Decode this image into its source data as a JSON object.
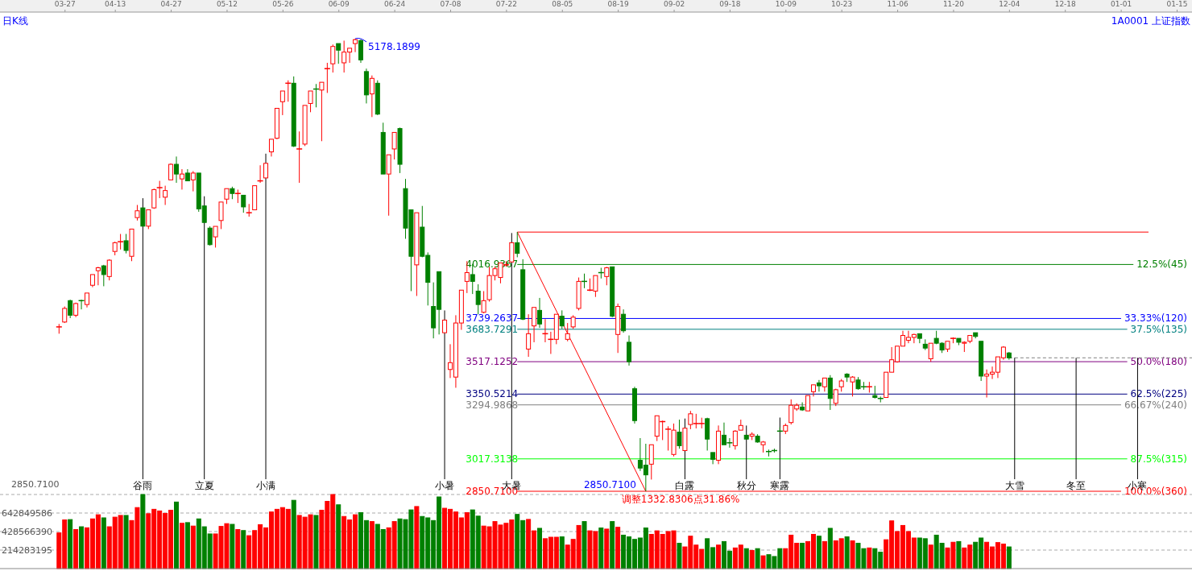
{
  "chart_data": [
    {
      "type": "candlestick",
      "title": "日K线",
      "subtitle": "1A0001 上证指数",
      "categories": [
        null,
        "03-27",
        null,
        null,
        null,
        null,
        null,
        null,
        null,
        null,
        "04-13",
        null,
        null,
        null,
        null,
        null,
        null,
        null,
        null,
        null,
        "04-27",
        null,
        null,
        null,
        null,
        null,
        null,
        null,
        null,
        null,
        "05-12",
        null,
        null,
        null,
        null,
        null,
        null,
        null,
        null,
        null,
        "05-26",
        null,
        null,
        null,
        null,
        null,
        null,
        null,
        null,
        null,
        "06-09",
        null,
        null,
        null,
        null,
        null,
        null,
        null,
        null,
        null,
        "06-24",
        null,
        null,
        null,
        null,
        null,
        null,
        null,
        null,
        null,
        "07-08",
        null,
        null,
        null,
        null,
        null,
        null,
        null,
        null,
        null,
        "07-22",
        null,
        null,
        null,
        null,
        null,
        null,
        null,
        null,
        null,
        "08-05",
        null,
        null,
        null,
        null,
        null,
        null,
        null,
        null,
        null,
        "08-19",
        null,
        null,
        null,
        null,
        null,
        null,
        null,
        null,
        null,
        "09-02",
        null,
        null,
        null,
        null,
        null,
        null,
        null,
        null,
        null,
        "09-18",
        null,
        null,
        null,
        null,
        null,
        null,
        null,
        null,
        null,
        "10-09",
        null,
        null,
        null,
        null,
        null,
        null,
        null,
        null,
        null,
        "10-23",
        null,
        null,
        null,
        null,
        null,
        null,
        null,
        null,
        null,
        "11-06",
        null,
        null,
        null,
        null,
        null,
        null,
        null,
        null,
        null,
        "11-20",
        null,
        null,
        null,
        null,
        null,
        null,
        null,
        null,
        null,
        "12-04",
        null,
        null,
        null,
        null,
        null,
        null,
        null,
        null,
        null,
        "12-18",
        null,
        null,
        null,
        null,
        null,
        null,
        null,
        null,
        null,
        "01-01",
        null,
        null,
        null,
        null,
        null,
        null,
        null,
        null,
        null,
        "01-15"
      ],
      "ohlc": [
        [
          3696,
          3711,
          3661,
          3696
        ],
        [
          3721,
          3801,
          3716,
          3791
        ],
        [
          3831,
          3836,
          3741,
          3756
        ],
        [
          3756,
          3821,
          3746,
          3816
        ],
        [
          3831,
          3836,
          3786,
          3831
        ],
        [
          3811,
          3870,
          3796,
          3870
        ],
        [
          3910,
          3965,
          3900,
          3965
        ],
        [
          3985,
          4005,
          3910,
          4000
        ],
        [
          4010,
          4015,
          3905,
          3965
        ],
        [
          3955,
          4044,
          3935,
          4039
        ],
        [
          4084,
          4134,
          4064,
          4129
        ],
        [
          4134,
          4174,
          4094,
          4134
        ],
        [
          4139,
          4174,
          4074,
          4089
        ],
        [
          4059,
          4199,
          4034,
          4199
        ],
        [
          4258,
          4323,
          4243,
          4293
        ],
        [
          4308,
          4308,
          4214,
          4214
        ],
        [
          4214,
          4298,
          4199,
          4298
        ],
        [
          4308,
          4407,
          4303,
          4402
        ],
        [
          4412,
          4447,
          4358,
          4412
        ],
        [
          4363,
          4422,
          4323,
          4397
        ],
        [
          4452,
          4537,
          4452,
          4532
        ],
        [
          4532,
          4572,
          4437,
          4482
        ],
        [
          4457,
          4507,
          4402,
          4482
        ],
        [
          4487,
          4507,
          4447,
          4447
        ],
        [
          4452,
          4497,
          4393,
          4487
        ],
        [
          4487,
          4487,
          4288,
          4303
        ],
        [
          4318,
          4318,
          4233,
          4233
        ],
        [
          4204,
          4213,
          4114,
          4119
        ],
        [
          4159,
          4213,
          4104,
          4213
        ],
        [
          4243,
          4338,
          4199,
          4338
        ],
        [
          4353,
          4407,
          4328,
          4407
        ],
        [
          4407,
          4417,
          4353,
          4382
        ],
        [
          4382,
          4402,
          4333,
          4382
        ],
        [
          4373,
          4373,
          4283,
          4313
        ],
        [
          4283,
          4328,
          4263,
          4283
        ],
        [
          4298,
          4422,
          4298,
          4422
        ],
        [
          4447,
          4527,
          4437,
          4447
        ],
        [
          4462,
          4537,
          4462,
          4537
        ],
        [
          4596,
          4661,
          4572,
          4661
        ],
        [
          4666,
          4820,
          4661,
          4820
        ],
        [
          4854,
          4909,
          4785,
          4909
        ],
        [
          4949,
          4964,
          4854,
          4949
        ],
        [
          4949,
          4984,
          4621,
          4626
        ],
        [
          4611,
          4701,
          4437,
          4611
        ],
        [
          4636,
          4835,
          4626,
          4835
        ],
        [
          4845,
          4909,
          4800,
          4909
        ],
        [
          4919,
          4945,
          4825,
          4919
        ],
        [
          4914,
          4954,
          4651,
          4954
        ],
        [
          5024,
          5054,
          4899,
          5024
        ],
        [
          5049,
          5148,
          5004,
          5138
        ],
        [
          5153,
          5153,
          5049,
          5119
        ],
        [
          5054,
          5168,
          5004,
          5109
        ],
        [
          5109,
          5129,
          5054,
          5129
        ],
        [
          5153,
          5178.1899,
          5109,
          5173
        ],
        [
          5168,
          5175,
          5054,
          5069
        ],
        [
          5009,
          5024,
          4845,
          4889
        ],
        [
          4894,
          4989,
          4775,
          4974
        ],
        [
          4949,
          4964,
          4785,
          4790
        ],
        [
          4696,
          4746,
          4482,
          4482
        ],
        [
          4482,
          4581,
          4268,
          4581
        ],
        [
          4611,
          4696,
          4557,
          4696
        ],
        [
          4716,
          4721,
          4487,
          4532
        ],
        [
          4407,
          4457,
          4149,
          4204
        ],
        [
          4298,
          4298,
          3880,
          4059
        ],
        [
          4015,
          4283,
          3855,
          4283
        ],
        [
          4209,
          4318,
          4054,
          4059
        ],
        [
          4064,
          4079,
          3806,
          3925
        ],
        [
          3801,
          3925,
          3637,
          3691
        ],
        [
          3980,
          3980,
          3657,
          3786
        ],
        [
          3666,
          3731,
          3666,
          3731
        ],
        [
          3477,
          3607,
          3433,
          3512
        ],
        [
          3438,
          3756,
          3383,
          3716
        ],
        [
          3716,
          3885,
          3681,
          3885
        ],
        [
          3930,
          4034,
          3870,
          3975
        ],
        [
          3965,
          4020,
          3865,
          3930
        ],
        [
          3880,
          3915,
          3761,
          3811
        ],
        [
          3771,
          3880,
          3766,
          3831
        ],
        [
          3836,
          4005,
          3826,
          3960
        ],
        [
          3960,
          4005,
          3935,
          3995
        ],
        [
          3950,
          4025,
          3920,
          4025
        ],
        [
          4015,
          4034,
          4005,
          4015
        ],
        [
          4030,
          4129,
          4030,
          4129
        ],
        [
          4129,
          4183.5406,
          4054,
          4074
        ],
        [
          3990,
          4044,
          3731,
          3736
        ],
        [
          3582,
          3761,
          3542,
          3661
        ],
        [
          3701,
          3796,
          3617,
          3796
        ],
        [
          3781,
          3845,
          3691,
          3711
        ],
        [
          3661,
          3736,
          3617,
          3661
        ],
        [
          3632,
          3671,
          3557,
          3632
        ],
        [
          3632,
          3761,
          3607,
          3761
        ],
        [
          3751,
          3781,
          3686,
          3701
        ],
        [
          3632,
          3716,
          3622,
          3661
        ],
        [
          3696,
          3756,
          3686,
          3746
        ],
        [
          3791,
          3950,
          3781,
          3930
        ],
        [
          3930,
          3970,
          3895,
          3930
        ],
        [
          3885,
          3945,
          3880,
          3885
        ],
        [
          3880,
          3960,
          3850,
          3960
        ],
        [
          3975,
          4000,
          3945,
          3975
        ],
        [
          3955,
          4005,
          3910,
          4000
        ],
        [
          4005,
          4005,
          3746,
          3751
        ],
        [
          3657,
          3816,
          3562,
          3801
        ],
        [
          3761,
          3786,
          3666,
          3676
        ],
        [
          3617,
          3652,
          3497,
          3517
        ],
        [
          3378,
          3388,
          3199,
          3214
        ],
        [
          3010,
          3124,
          2955,
          2970
        ],
        [
          2985,
          3095,
          2850.71,
          2935
        ],
        [
          2990,
          3090,
          2911,
          3090
        ],
        [
          3134,
          3239,
          3109,
          3239
        ],
        [
          3209,
          3214,
          3114,
          3209
        ],
        [
          3170,
          3185,
          3060,
          3170
        ],
        [
          3040,
          3199,
          3030,
          3165
        ],
        [
          3155,
          3219,
          3070,
          3085
        ],
        [
          3060,
          3175,
          3060,
          3175
        ],
        [
          3194,
          3264,
          3170,
          3249
        ],
        [
          3199,
          3249,
          3174,
          3199
        ],
        [
          3199,
          3229,
          3174,
          3199
        ],
        [
          3224,
          3229,
          3060,
          3119
        ],
        [
          3050,
          3050,
          2990,
          3015
        ],
        [
          3010,
          3189,
          2990,
          3160
        ],
        [
          3139,
          3204,
          3090,
          3090
        ],
        [
          3100,
          3124,
          3075,
          3100
        ],
        [
          3085,
          3165,
          3065,
          3160
        ],
        [
          3165,
          3219,
          3165,
          3189
        ],
        [
          3139,
          3139,
          3119,
          3119
        ],
        [
          3134,
          3154,
          3114,
          3144
        ],
        [
          3134,
          3144,
          3100,
          3104
        ],
        [
          3090,
          3109,
          3050,
          3104
        ],
        [
          3055,
          3065,
          3030,
          3055
        ],
        [
          3060,
          3070,
          3050,
          3060
        ],
        [
          3160,
          3180,
          3160,
          3160
        ],
        [
          3160,
          3199,
          3145,
          3189
        ],
        [
          3204,
          3323,
          3194,
          3293
        ],
        [
          3274,
          3303,
          3264,
          3293
        ],
        [
          3284,
          3308,
          3264,
          3269
        ],
        [
          3264,
          3343,
          3264,
          3343
        ],
        [
          3363,
          3398,
          3338,
          3398
        ],
        [
          3408,
          3423,
          3363,
          3393
        ],
        [
          3388,
          3433,
          3363,
          3433
        ],
        [
          3433,
          3448,
          3269,
          3328
        ],
        [
          3303,
          3378,
          3289,
          3373
        ],
        [
          3388,
          3428,
          3363,
          3418
        ],
        [
          3453,
          3458,
          3413,
          3438
        ],
        [
          3413,
          3443,
          3338,
          3438
        ],
        [
          3423,
          3438,
          3373,
          3378
        ],
        [
          3388,
          3413,
          3373,
          3388
        ],
        [
          3388,
          3413,
          3358,
          3388
        ],
        [
          3343,
          3393,
          3328,
          3333
        ],
        [
          3328,
          3338,
          3308,
          3328
        ],
        [
          3333,
          3463,
          3333,
          3463
        ],
        [
          3463,
          3592,
          3463,
          3527
        ],
        [
          3517,
          3597,
          3512,
          3597
        ],
        [
          3597,
          3676,
          3597,
          3652
        ],
        [
          3627,
          3676,
          3612,
          3642
        ],
        [
          3642,
          3661,
          3612,
          3657
        ],
        [
          3661,
          3661,
          3612,
          3637
        ],
        [
          3607,
          3632,
          3577,
          3587
        ],
        [
          3532,
          3612,
          3517,
          3612
        ],
        [
          3637,
          3676,
          3607,
          3612
        ],
        [
          3612,
          3617,
          3562,
          3577
        ],
        [
          3582,
          3622,
          3567,
          3622
        ],
        [
          3637,
          3642,
          3612,
          3637
        ],
        [
          3637,
          3637,
          3602,
          3617
        ],
        [
          3612,
          3622,
          3567,
          3617
        ],
        [
          3622,
          3652,
          3612,
          3652
        ],
        [
          3666,
          3666,
          3637,
          3647
        ],
        [
          3622,
          3622,
          3418,
          3443
        ],
        [
          3443,
          3477,
          3333,
          3453
        ],
        [
          3453,
          3492,
          3428,
          3463
        ],
        [
          3463,
          3542,
          3433,
          3542
        ],
        [
          3537,
          3597,
          3527,
          3592
        ],
        [
          3562,
          3567,
          3527,
          3537
        ],
        null,
        null,
        null,
        null,
        null,
        null,
        null,
        null,
        null,
        null,
        null,
        null,
        null,
        null,
        null,
        null,
        null,
        null,
        null,
        null,
        null,
        null,
        null,
        null,
        null,
        null,
        null,
        null,
        null,
        null
      ],
      "colors": [
        "#ff0000",
        "#ff0000",
        "#008000",
        "#ff0000",
        "#008000",
        "#ff0000",
        "#ff0000",
        "#ff0000",
        "#008000",
        "#ff0000",
        "#ff0000",
        "#ff0000",
        "#008000",
        "#ff0000",
        "#ff0000",
        "#008000",
        "#ff0000",
        "#ff0000",
        "#ff0000",
        "#ff0000",
        "#ff0000",
        "#008000",
        "#ff0000",
        "#008000",
        "#ff0000",
        "#008000",
        "#008000",
        "#008000",
        "#ff0000",
        "#ff0000",
        "#ff0000",
        "#008000",
        "#ff0000",
        "#008000",
        "#ff0000",
        "#ff0000",
        "#ff0000",
        "#ff0000",
        "#ff0000",
        "#ff0000",
        "#ff0000",
        "#ff0000",
        "#008000",
        "#ff0000",
        "#ff0000",
        "#ff0000",
        "#008000",
        "#ff0000",
        "#ff0000",
        "#ff0000",
        "#008000",
        "#ff0000",
        "#ff0000",
        "#ff0000",
        "#008000",
        "#008000",
        "#ff0000",
        "#008000",
        "#008000",
        "#ff0000",
        "#ff0000",
        "#008000",
        "#008000",
        "#008000",
        "#ff0000",
        "#008000",
        "#008000",
        "#008000",
        "#008000",
        "#ff0000",
        "#ff0000",
        "#ff0000",
        "#ff0000",
        "#ff0000",
        "#008000",
        "#008000",
        "#ff0000",
        "#ff0000",
        "#ff0000",
        "#ff0000",
        "#ff0000",
        "#ff0000",
        "#008000",
        "#008000",
        "#ff0000",
        "#ff0000",
        "#008000",
        "#ff0000",
        "#ff0000",
        "#ff0000",
        "#008000",
        "#ff0000",
        "#ff0000",
        "#ff0000",
        "#008000",
        "#ff0000",
        "#ff0000",
        "#008000",
        "#ff0000",
        "#008000",
        "#ff0000",
        "#008000",
        "#008000",
        "#008000",
        "#008000",
        "#008000",
        "#ff0000",
        "#ff0000",
        "#ff0000",
        "#ff0000",
        "#ff0000",
        "#008000",
        "#ff0000",
        "#ff0000",
        "#ff0000",
        "#ff0000",
        "#008000",
        "#008000",
        "#ff0000",
        "#008000",
        "#008000",
        "#ff0000",
        "#ff0000",
        "#008000",
        "#ff0000",
        "#008000",
        "#ff0000",
        "#008000",
        "#008000",
        "#008000",
        "#ff0000",
        "#ff0000",
        "#ff0000",
        "#008000",
        "#ff0000",
        "#ff0000",
        "#008000",
        "#ff0000",
        "#008000",
        "#ff0000",
        "#ff0000",
        "#008000",
        "#ff0000",
        "#008000",
        "#008000",
        "#ff0000",
        "#008000",
        "#008000",
        "#ff0000",
        "#ff0000",
        "#ff0000",
        "#ff0000",
        "#ff0000",
        "#ff0000",
        "#008000",
        "#008000",
        "#ff0000",
        "#008000",
        "#008000",
        "#ff0000",
        "#ff0000",
        "#008000",
        "#ff0000",
        "#ff0000",
        "#008000",
        "#008000",
        "#ff0000",
        "#ff0000",
        "#ff0000",
        "#ff0000",
        "#008000",
        null,
        null,
        null,
        null,
        null,
        null,
        null,
        null,
        null,
        null,
        null,
        null,
        null,
        null,
        null,
        null,
        null,
        null,
        null,
        null,
        null,
        null,
        null,
        null,
        null,
        null,
        null,
        null,
        null,
        null
      ],
      "series": [
        {
          "type": "line",
          "color": "#ff0000",
          "values": [
            null,
            null,
            null,
            null,
            null,
            null,
            null,
            null,
            null,
            null,
            null,
            null,
            null,
            null,
            null,
            null,
            null,
            null,
            null,
            null,
            null,
            null,
            null,
            null,
            null,
            null,
            null,
            null,
            null,
            null,
            null,
            null,
            null,
            null,
            null,
            null,
            null,
            null,
            null,
            null,
            null,
            null,
            null,
            null,
            null,
            null,
            null,
            null,
            null,
            null,
            null,
            null,
            null,
            null,
            null,
            null,
            null,
            null,
            null,
            null,
            null,
            null,
            null,
            null,
            null,
            null,
            null,
            null,
            null,
            null,
            null,
            null,
            null,
            null,
            null,
            null,
            null,
            null,
            null,
            null,
            null,
            null,
            4183.5406,
            null,
            null,
            null,
            null,
            null,
            null,
            null,
            null,
            null,
            null,
            null,
            null,
            null,
            null,
            null,
            null,
            null,
            null,
            null,
            null,
            null,
            null,
            2850.71,
            null,
            null,
            null,
            null,
            null,
            null,
            null,
            null,
            null,
            null,
            null,
            null,
            null,
            null,
            null,
            null,
            null,
            null,
            null,
            null,
            null,
            null,
            null,
            null,
            null,
            null,
            null,
            null,
            null,
            null,
            null,
            null,
            null,
            null,
            null,
            null,
            null,
            null,
            null,
            null,
            null,
            null,
            null,
            null,
            null,
            null,
            null,
            null,
            null,
            null,
            null,
            null,
            null,
            null,
            null,
            null,
            null,
            null,
            null,
            null,
            null,
            null,
            null,
            null,
            null,
            null,
            null,
            null,
            null,
            null,
            null,
            null,
            null,
            null,
            null,
            null,
            null,
            null,
            null,
            null,
            null,
            null,
            null,
            null,
            null,
            null,
            null,
            null,
            null,
            null,
            null,
            null,
            null,
            null,
            null
          ]
        }
      ],
      "ref_lines": [
        {
          "axis": "y",
          "value": 4183.5406,
          "color": "#ff0000"
        },
        {
          "axis": "y",
          "value": 4016.9367,
          "label": "4016.9367",
          "color": "#008000"
        },
        {
          "axis": "y",
          "value": 3739.2637,
          "label": "3739.2637",
          "color": "#0000ff"
        },
        {
          "axis": "y",
          "value": 3683.7291,
          "label": "3683.7291",
          "color": "#008080"
        },
        {
          "axis": "y",
          "value": 3517.1252,
          "label": "3517.1252",
          "color": "#800080"
        },
        {
          "axis": "y",
          "value": 3350.5214,
          "label": "3350.5214",
          "color": "#000080"
        },
        {
          "axis": "y",
          "value": 3294.9868,
          "label": "3294.9868",
          "color": "#808080"
        },
        {
          "axis": "y",
          "value": 3017.3138,
          "label": "3017.3138",
          "color": "#00ff00"
        },
        {
          "axis": "y",
          "value": 2850.71,
          "label": "2850.7100",
          "color": "#ff0000"
        },
        {
          "axis": "y",
          "value": 3537,
          "color": "#808080",
          "line_style": "dashed"
        }
      ],
      "annotations": [
        "5178.1899",
        "2850.7100",
        "调整1332.8306点31.86%",
        "2850.7100",
        "12.5%(45)",
        "33.33%(120)",
        "37.5%(135)",
        "50.0%(180)",
        "62.5%(225)",
        "66.67%(240)",
        "87.5%(315)",
        "100.0%(360)",
        "谷雨",
        "立夏",
        "小满",
        "小暑",
        "大暑",
        "白露",
        "秋分",
        "寒露",
        {
          "text": "大雪",
          "y": 3537
        },
        {
          "text": "冬至",
          "y": 3537
        },
        {
          "text": "小寒",
          "y": 3537
        }
      ]
    },
    {
      "type": "bar",
      "categories": [
        null,
        null,
        null,
        null,
        null,
        null,
        null,
        null,
        null,
        null,
        null,
        null,
        null,
        null,
        null,
        null,
        null,
        null,
        null,
        null,
        null,
        null,
        null,
        null,
        null,
        null,
        null,
        null,
        null,
        null,
        null,
        null,
        null,
        null,
        null,
        null,
        null,
        null,
        null,
        null,
        null,
        null,
        null,
        null,
        null,
        null,
        null,
        null,
        null,
        null,
        null,
        null,
        null,
        null,
        null,
        null,
        null,
        null,
        null,
        null,
        null,
        null,
        null,
        null,
        null,
        null,
        null,
        null,
        null,
        null,
        null,
        null,
        null,
        null,
        null,
        null,
        null,
        null,
        null,
        null,
        null,
        null,
        null,
        null,
        null,
        null,
        null,
        null,
        null,
        null,
        null,
        null,
        null,
        null,
        null,
        null,
        null,
        null,
        null,
        null,
        null,
        null,
        null,
        null,
        null,
        null,
        null,
        null,
        null,
        null,
        null,
        null,
        null,
        null,
        null,
        null,
        null,
        null,
        null,
        null,
        null,
        null,
        null,
        null,
        null,
        null,
        null,
        null,
        null,
        null,
        null,
        null,
        null,
        null,
        null,
        null,
        null,
        null,
        null,
        null,
        null,
        null,
        null,
        null,
        null,
        null,
        null,
        null,
        null,
        null,
        null,
        null,
        null,
        null,
        null,
        null,
        null,
        null,
        null,
        null,
        null,
        null,
        null,
        null,
        null,
        null,
        null,
        null,
        null,
        null,
        null,
        null,
        null,
        null,
        null,
        null,
        null,
        null,
        null,
        null,
        null,
        null,
        null,
        null,
        null,
        null,
        null,
        null,
        null,
        null,
        null,
        null,
        null,
        null,
        null,
        null,
        null,
        null,
        null,
        null,
        null
      ],
      "values": [
        413000000,
        563000000,
        567000000,
        452000000,
        484000000,
        472000000,
        575000000,
        623000000,
        587000000,
        484000000,
        595000000,
        615000000,
        615000000,
        556000000,
        706000000,
        857000000,
        635000000,
        686000000,
        667000000,
        639000000,
        675000000,
        770000000,
        524000000,
        532000000,
        492000000,
        575000000,
        484000000,
        401000000,
        401000000,
        488000000,
        520000000,
        512000000,
        452000000,
        440000000,
        381000000,
        440000000,
        508000000,
        472000000,
        655000000,
        686000000,
        706000000,
        686000000,
        790000000,
        615000000,
        595000000,
        623000000,
        615000000,
        675000000,
        778000000,
        857000000,
        738000000,
        603000000,
        563000000,
        623000000,
        647000000,
        556000000,
        544000000,
        512000000,
        452000000,
        472000000,
        544000000,
        575000000,
        567000000,
        679000000,
        718000000,
        603000000,
        587000000,
        556000000,
        829000000,
        698000000,
        686000000,
        655000000,
        587000000,
        647000000,
        679000000,
        607000000,
        492000000,
        484000000,
        544000000,
        504000000,
        524000000,
        563000000,
        627000000,
        556000000,
        569000000,
        437000000,
        466000000,
        346000000,
        363000000,
        363000000,
        367000000,
        272000000,
        338000000,
        499000000,
        544000000,
        437000000,
        429000000,
        470000000,
        457000000,
        544000000,
        478000000,
        387000000,
        367000000,
        338000000,
        354000000,
        470000000,
        396000000,
        437000000,
        396000000,
        429000000,
        437000000,
        293000000,
        251000000,
        375000000,
        272000000,
        223000000,
        346000000,
        243000000,
        272000000,
        313000000,
        202000000,
        239000000,
        272000000,
        231000000,
        210000000,
        231000000,
        148000000,
        161000000,
        140000000,
        231000000,
        231000000,
        387000000,
        293000000,
        293000000,
        313000000,
        396000000,
        375000000,
        313000000,
        466000000,
        321000000,
        346000000,
        367000000,
        321000000,
        293000000,
        231000000,
        239000000,
        231000000,
        190000000,
        334000000,
        552000000,
        429000000,
        499000000,
        429000000,
        354000000,
        354000000,
        346000000,
        272000000,
        387000000,
        293000000,
        239000000,
        305000000,
        313000000,
        239000000,
        272000000,
        305000000,
        354000000,
        305000000,
        251000000,
        301000000,
        284000000,
        251000000,
        null,
        null,
        null,
        null,
        null,
        null,
        null,
        null,
        null,
        null,
        null,
        null,
        null,
        null,
        null,
        null,
        null,
        null,
        null,
        null,
        null,
        null,
        null,
        null,
        null,
        null,
        null,
        null,
        null,
        null
      ],
      "colors": [
        "#ff0000",
        "#ff0000",
        "#008000",
        "#ff0000",
        "#008000",
        "#ff0000",
        "#ff0000",
        "#ff0000",
        "#008000",
        "#ff0000",
        "#ff0000",
        "#ff0000",
        "#008000",
        "#ff0000",
        "#ff0000",
        "#008000",
        "#ff0000",
        "#ff0000",
        "#ff0000",
        "#ff0000",
        "#ff0000",
        "#008000",
        "#ff0000",
        "#008000",
        "#ff0000",
        "#008000",
        "#008000",
        "#008000",
        "#ff0000",
        "#ff0000",
        "#ff0000",
        "#008000",
        "#ff0000",
        "#008000",
        "#ff0000",
        "#ff0000",
        "#ff0000",
        "#ff0000",
        "#ff0000",
        "#ff0000",
        "#ff0000",
        "#ff0000",
        "#008000",
        "#ff0000",
        "#ff0000",
        "#ff0000",
        "#008000",
        "#ff0000",
        "#ff0000",
        "#ff0000",
        "#008000",
        "#ff0000",
        "#ff0000",
        "#ff0000",
        "#008000",
        "#008000",
        "#ff0000",
        "#008000",
        "#008000",
        "#ff0000",
        "#ff0000",
        "#008000",
        "#008000",
        "#008000",
        "#ff0000",
        "#008000",
        "#008000",
        "#008000",
        "#008000",
        "#ff0000",
        "#ff0000",
        "#ff0000",
        "#ff0000",
        "#ff0000",
        "#008000",
        "#008000",
        "#ff0000",
        "#ff0000",
        "#ff0000",
        "#ff0000",
        "#ff0000",
        "#ff0000",
        "#008000",
        "#008000",
        "#ff0000",
        "#ff0000",
        "#008000",
        "#ff0000",
        "#ff0000",
        "#ff0000",
        "#008000",
        "#ff0000",
        "#ff0000",
        "#ff0000",
        "#008000",
        "#ff0000",
        "#ff0000",
        "#008000",
        "#ff0000",
        "#008000",
        "#ff0000",
        "#008000",
        "#008000",
        "#008000",
        "#008000",
        "#008000",
        "#ff0000",
        "#ff0000",
        "#ff0000",
        "#ff0000",
        "#ff0000",
        "#008000",
        "#ff0000",
        "#ff0000",
        "#ff0000",
        "#ff0000",
        "#008000",
        "#008000",
        "#ff0000",
        "#008000",
        "#008000",
        "#ff0000",
        "#ff0000",
        "#008000",
        "#ff0000",
        "#008000",
        "#ff0000",
        "#008000",
        "#008000",
        "#008000",
        "#ff0000",
        "#ff0000",
        "#ff0000",
        "#008000",
        "#ff0000",
        "#ff0000",
        "#008000",
        "#ff0000",
        "#008000",
        "#ff0000",
        "#ff0000",
        "#008000",
        "#ff0000",
        "#008000",
        "#008000",
        "#ff0000",
        "#008000",
        "#008000",
        "#ff0000",
        "#ff0000",
        "#ff0000",
        "#ff0000",
        "#ff0000",
        "#ff0000",
        "#008000",
        "#008000",
        "#ff0000",
        "#008000",
        "#008000",
        "#ff0000",
        "#ff0000",
        "#008000",
        "#ff0000",
        "#ff0000",
        "#008000",
        "#008000",
        "#ff0000",
        "#ff0000",
        "#ff0000",
        "#ff0000",
        "#008000",
        null,
        null,
        null,
        null,
        null,
        null,
        null,
        null,
        null,
        null,
        null,
        null,
        null,
        null,
        null,
        null,
        null,
        null,
        null,
        null,
        null,
        null,
        null,
        null,
        null,
        null,
        null,
        null,
        null,
        null
      ],
      "ylim": [
        0,
        857132781
      ],
      "yticks": [
        214283195,
        428566390,
        642849586,
        {
          "value": 857132781,
          "label": null
        }
      ],
      "grid": "y"
    }
  ]
}
